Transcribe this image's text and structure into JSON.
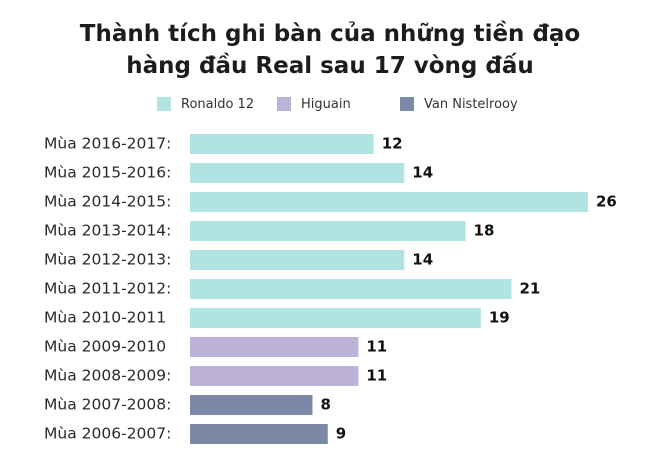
{
  "chart_data": {
    "type": "bar",
    "orientation": "horizontal",
    "title": [
      "Thành tích ghi bàn của những tiền đạo",
      "hàng đầu Real sau 17 vòng đấu"
    ],
    "legend": [
      {
        "name": "Ronaldo 12",
        "color": "#b2e3e3"
      },
      {
        "name": "Higuain",
        "color": "#bdb2d8"
      },
      {
        "name": "Van Nistelrooy",
        "color": "#7b89a7"
      }
    ],
    "legend_placement": "top",
    "categories": [
      "Mùa 2016-2017:",
      "Mùa 2015-2016:",
      "Mùa 2014-2015:",
      "Mùa 2013-2014:",
      "Mùa 2012-2013:",
      "Mùa 2011-2012:",
      "Mùa 2010-2011",
      "Mùa 2009-2010",
      "Mùa 2008-2009:",
      "Mùa 2007-2008:",
      "Mùa 2006-2007:"
    ],
    "values": [
      12,
      14,
      26,
      18,
      14,
      21,
      19,
      11,
      11,
      8,
      9
    ],
    "series_index": [
      0,
      0,
      0,
      0,
      0,
      0,
      0,
      1,
      1,
      2,
      2
    ],
    "xlim": [
      0,
      26
    ],
    "grid": false
  }
}
